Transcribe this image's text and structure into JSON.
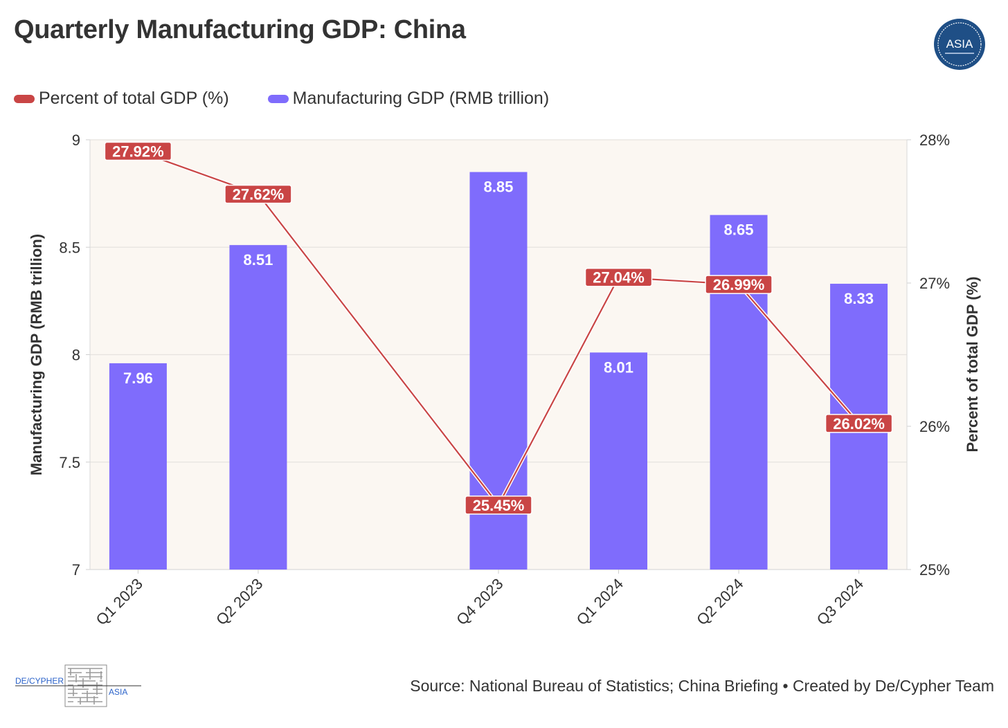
{
  "title": "Quarterly Manufacturing GDP: China",
  "logo_text": "ASIA",
  "legend": [
    {
      "label": "Percent of total GDP (%)",
      "color": "#c94545"
    },
    {
      "label": "Manufacturing GDP (RMB trillion)",
      "color": "#7f6cfc"
    }
  ],
  "source": "Source: National Bureau of Statistics; China Briefing • Created by De/Cypher Team",
  "brand": {
    "left": "DE/CYPHER",
    "right": "ASIA"
  },
  "chart_data": {
    "type": "bar+line",
    "title": "Quarterly Manufacturing GDP: China",
    "categories": [
      "Q1 2023",
      "Q2 2023",
      "Q4 2023",
      "Q1 2024",
      "Q2 2024",
      "Q3 2024"
    ],
    "bar_series": {
      "name": "Manufacturing GDP (RMB trillion)",
      "values": [
        7.96,
        8.51,
        8.85,
        8.01,
        8.65,
        8.33
      ],
      "labels": [
        "7.96",
        "8.51",
        "8.85",
        "8.01",
        "8.65",
        "8.33"
      ],
      "color": "#7f6cfc"
    },
    "line_series": {
      "name": "Percent of total GDP (%)",
      "values": [
        27.92,
        27.62,
        25.45,
        27.04,
        26.99,
        26.02
      ],
      "labels": [
        "27.92%",
        "27.62%",
        "25.45%",
        "27.04%",
        "26.99%",
        "26.02%"
      ],
      "color": "#c94545"
    },
    "x_positions": [
      2023.0,
      2023.25,
      2023.75,
      2024.0,
      2024.25,
      2024.5
    ],
    "x_range": [
      2022.9,
      2024.6
    ],
    "ylabel_left": "Manufacturing GDP (RMB trillion)",
    "ylim_left": [
      7,
      9
    ],
    "yticks_left": [
      "7",
      "7.5",
      "8",
      "8.5",
      "9"
    ],
    "yticks_left_values": [
      7,
      7.5,
      8,
      8.5,
      9
    ],
    "ylabel_right": "Percent of total GDP (%)",
    "ylim_right": [
      25,
      28
    ],
    "yticks_right": [
      "25%",
      "26%",
      "27%",
      "28%"
    ],
    "yticks_right_values": [
      25,
      26,
      27,
      28
    ],
    "plot_background": "#fbf7f2",
    "grid": true
  }
}
